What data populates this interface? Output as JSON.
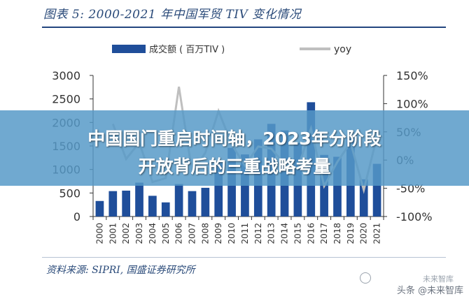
{
  "figure": {
    "title": "图表 5:   2000-2021 年中国军贸 TIV 变化情况",
    "source": "资料来源:  SIPRI, 国盛证券研究所"
  },
  "banner": {
    "line1": "中国国门重启时间轴，2023年分阶段",
    "line2": "开放背后的三重战略考量"
  },
  "watermark": {
    "top": "未来智库",
    "bottom": "头条 @未来智库"
  },
  "colors": {
    "bar": "#1f4e9a",
    "line": "#bfbfbf",
    "axis": "#333333"
  },
  "chart_data": {
    "type": "bar",
    "categories": [
      "2000",
      "2001",
      "2002",
      "2003",
      "2004",
      "2005",
      "2006",
      "2007",
      "2008",
      "2009",
      "2010",
      "2011",
      "2012",
      "2013",
      "2014",
      "2015",
      "2016",
      "2017",
      "2018",
      "2019",
      "2020",
      "2021"
    ],
    "series": [
      {
        "name": "成交额 ( 百万TIV )",
        "type": "bar",
        "axis": "left",
        "values": [
          330,
          540,
          550,
          720,
          440,
          300,
          690,
          540,
          610,
          1140,
          1460,
          1320,
          1640,
          1970,
          1830,
          1560,
          2430,
          1310,
          1270,
          1670,
          790,
          1120
        ]
      },
      {
        "name": "yoy",
        "type": "line",
        "axis": "right",
        "values": [
          null,
          64,
          2,
          31,
          -39,
          -32,
          130,
          -22,
          13,
          87,
          28,
          -10,
          24,
          20,
          -7,
          -15,
          56,
          -46,
          -3,
          31,
          -53,
          42
        ]
      }
    ],
    "y_left": {
      "min": 0,
      "max": 3000,
      "ticks": [
        0,
        500,
        1000,
        1500,
        2000,
        2500,
        3000
      ]
    },
    "y_right": {
      "min": -100,
      "max": 150,
      "ticks": [
        -100,
        -50,
        0,
        50,
        100,
        150
      ],
      "tick_labels": [
        "-100%",
        "-50%",
        "0%",
        "50%",
        "100%",
        "150%"
      ]
    },
    "legend": "top",
    "grid": false
  }
}
